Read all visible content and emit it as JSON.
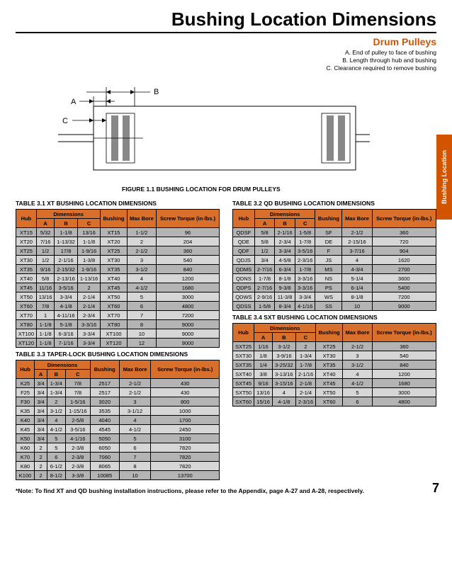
{
  "title": "Bushing Location Dimensions",
  "subtitle": "Drum Pulleys",
  "legend": {
    "a": "A. End of pulley to face of bushing",
    "b": "B. Length through hub and bushing",
    "c": "C. Clearance required to remove bushing"
  },
  "sideTab": "Bushing Location",
  "figCaption": "FIGURE 1.1 BUSHING LOCATION FOR DRUM PULLEYS",
  "footnote": "*Note: To find XT and QD bushing installation instructions, please refer to the Appendix, page A-27 and A-28, respectively.",
  "pageNum": "7",
  "headers": {
    "hub": "Hub",
    "dims": "Dimensions",
    "a": "A",
    "b": "B",
    "c": "C",
    "bushing": "Bushing",
    "maxbore": "Max Bore",
    "torque": "Screw Torque (in-lbs.)"
  },
  "table31": {
    "caption": "TABLE 3.1 XT BUSHING LOCATION DIMENSIONS",
    "rows": [
      [
        "XT15",
        "5/32",
        "1-1/8",
        "13/16",
        "XT15",
        "1-1/2",
        "96"
      ],
      [
        "XT20",
        "7/16",
        "1-13/32",
        "1-1/8",
        "XT20",
        "2",
        "204"
      ],
      [
        "XT25",
        "1/2",
        "17/8",
        "1-9/16",
        "XT25",
        "2-1/2",
        "360"
      ],
      [
        "XT30",
        "1/2",
        "2-1/16",
        "1-3/8",
        "XT30",
        "3",
        "540"
      ],
      [
        "XT35",
        "9/16",
        "2-15/32",
        "1-9/16",
        "XT35",
        "3-1/2",
        "840"
      ],
      [
        "XT40",
        "5/8",
        "2-13/16",
        "1-13/16",
        "XT40",
        "4",
        "1200"
      ],
      [
        "XT45",
        "11/16",
        "3-5/16",
        "2",
        "XT45",
        "4-1/2",
        "1680"
      ],
      [
        "XT50",
        "13/16",
        "3-3/4",
        "2-1/4",
        "XT50",
        "5",
        "3000"
      ],
      [
        "XT60",
        "7/8",
        "4-1/8",
        "2-1/4",
        "XT60",
        "6",
        "4800"
      ],
      [
        "XT70",
        "1",
        "4-11/16",
        "2-3/4",
        "XT70",
        "7",
        "7200"
      ],
      [
        "XT80",
        "1-1/8",
        "5-1/8",
        "3-3/16",
        "XT80",
        "8",
        "9000"
      ],
      [
        "XT100",
        "1-1/8",
        "6-3/16",
        "3-3/4",
        "XT100",
        "10",
        "9000"
      ],
      [
        "XT120",
        "1-1/8",
        "7-1/16",
        "3-3/4",
        "XT120",
        "12",
        "9000"
      ]
    ]
  },
  "table32": {
    "caption": "TABLE 3.2 QD BUSHING LOCATION DIMENSIONS",
    "rows": [
      [
        "QDSF",
        "5/8",
        "2-1/16",
        "1-5/8",
        "SF",
        "2-1/2",
        "360"
      ],
      [
        "QDE",
        "5/8",
        "2-3/4",
        "1-7/8",
        "DE",
        "2-15/16",
        "720"
      ],
      [
        "QDF",
        "1/2",
        "3-3/4",
        "3-5/16",
        "F",
        "3-7/16",
        "904"
      ],
      [
        "QDJS",
        "3/4",
        "4-5/8",
        "2-3/16",
        "JS",
        "4",
        "1620"
      ],
      [
        "QDMS",
        "2-7/16",
        "6-3/4",
        "1-7/8",
        "MS",
        "4-3/4",
        "2700"
      ],
      [
        "QDNS",
        "1-7/8",
        "8-1/8",
        "3-3/16",
        "NS",
        "5-1/4",
        "3600"
      ],
      [
        "QDPS",
        "2-7/16",
        "9-3/8",
        "3-3/16",
        "PS",
        "6-1/4",
        "5400"
      ],
      [
        "QDWS",
        "2-9/16",
        "11-3/8",
        "3-3/4",
        "WS",
        "8-1/8",
        "7200"
      ],
      [
        "QDSS",
        "1-5/8",
        "8-3/4",
        "4-1/16",
        "SS",
        "10",
        "9000"
      ]
    ]
  },
  "table33": {
    "caption": "TABLE 3.3 TAPER-LOCK BUSHING LOCATION DIMENSIONS",
    "rows": [
      [
        "K25",
        "3/4",
        "1-3/4",
        "7/8",
        "2517",
        "2-1/2",
        "430"
      ],
      [
        "F25",
        "3/4",
        "1-3/4",
        "7/8",
        "2517",
        "2-1/2",
        "430"
      ],
      [
        "F30",
        "3/4",
        "2",
        "1-5/16",
        "3020",
        "3",
        "800"
      ],
      [
        "K35",
        "3/4",
        "3-1/2",
        "1-15/16",
        "3535",
        "3-1/12",
        "1000"
      ],
      [
        "K40",
        "3/4",
        "4",
        "2-5/8",
        "4040",
        "4",
        "1700"
      ],
      [
        "K45",
        "3/4",
        "4-1/2",
        "3-5/16",
        "4545",
        "4-1/2",
        "2450"
      ],
      [
        "K50",
        "3/4",
        "5",
        "4-1/16",
        "5050",
        "5",
        "3100"
      ],
      [
        "K60",
        "2",
        "5",
        "2-3/8",
        "6050",
        "6",
        "7820"
      ],
      [
        "K70",
        "2",
        "6",
        "2-3/8",
        "7060",
        "7",
        "7820"
      ],
      [
        "K80",
        "2",
        "6-1/2",
        "2-3/8",
        "8065",
        "8",
        "7820"
      ],
      [
        "K100",
        "2",
        "8-1/2",
        "3-3/8",
        "10085",
        "10",
        "13700"
      ]
    ]
  },
  "table34": {
    "caption": "TABLE 3.4 SXT BUSHING LOCATION DIMENSIONS",
    "rows": [
      [
        "SXT25",
        "1/16",
        "3-1/2",
        "2",
        "XT25",
        "2-1/2",
        "360"
      ],
      [
        "SXT30",
        "1/8",
        "3-9/16",
        "1-3/4",
        "XT30",
        "3",
        "540"
      ],
      [
        "SXT35",
        "1/4",
        "3-25/32",
        "1-7/8",
        "XT35",
        "3-1/2",
        "840"
      ],
      [
        "SXT40",
        "3/8",
        "3-13/16",
        "2-1/16",
        "XT40",
        "4",
        "1200"
      ],
      [
        "SXT45",
        "9/16",
        "3-15/16",
        "2-1/8",
        "XT45",
        "4-1/2",
        "1680"
      ],
      [
        "SXT50",
        "13/16",
        "4",
        "2-1/4",
        "XT50",
        "5",
        "3000"
      ],
      [
        "SXT60",
        "15/16",
        "4-1/8",
        "2-3/16",
        "XT60",
        "6",
        "4800"
      ]
    ]
  }
}
